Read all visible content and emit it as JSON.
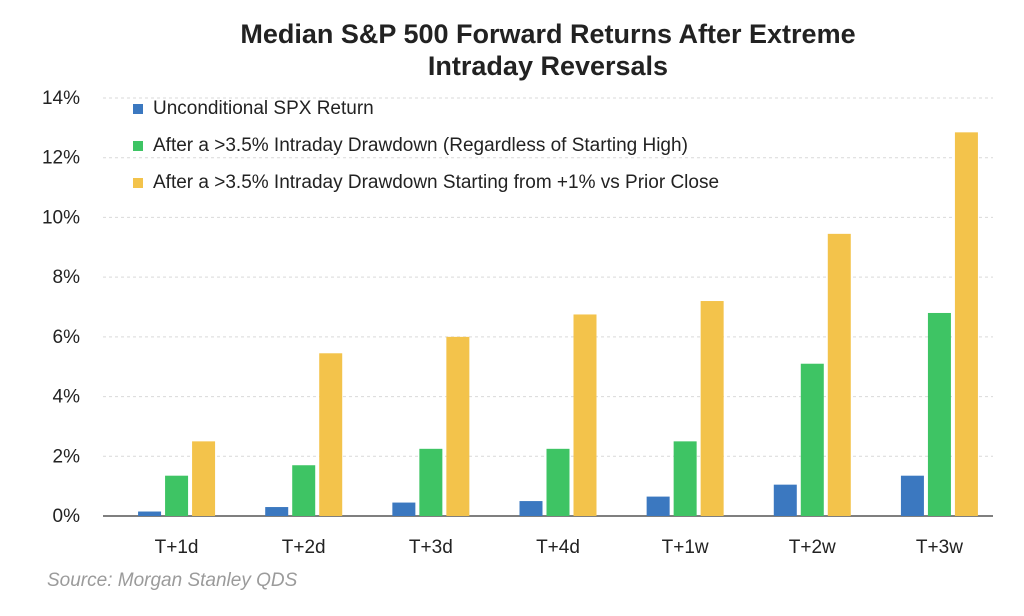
{
  "chart_data": {
    "type": "bar",
    "title_lines": [
      "Median S&P 500 Forward Returns After Extreme",
      "Intraday Reversals"
    ],
    "categories": [
      "T+1d",
      "T+2d",
      "T+3d",
      "T+4d",
      "T+1w",
      "T+2w",
      "T+3w"
    ],
    "series": [
      {
        "name": "Unconditional SPX Return",
        "color": "#3b78c0",
        "values": [
          0.15,
          0.3,
          0.45,
          0.5,
          0.65,
          1.05,
          1.35
        ]
      },
      {
        "name": "After a >3.5% Intraday Drawdown (Regardless of Starting High)",
        "color": "#3ec464",
        "values": [
          1.35,
          1.7,
          2.25,
          2.25,
          2.5,
          5.1,
          6.8
        ]
      },
      {
        "name": "After a >3.5% Intraday Drawdown Starting from +1% vs Prior Close",
        "color": "#f3c34b",
        "values": [
          2.5,
          5.45,
          6.0,
          6.75,
          7.2,
          9.45,
          12.85
        ]
      }
    ],
    "ylim": [
      0,
      14
    ],
    "yticks": [
      "0%",
      "2%",
      "4%",
      "6%",
      "8%",
      "10%",
      "12%",
      "14%"
    ],
    "grid": true,
    "legend_position": "top-left",
    "source": "Source: Morgan Stanley QDS"
  }
}
